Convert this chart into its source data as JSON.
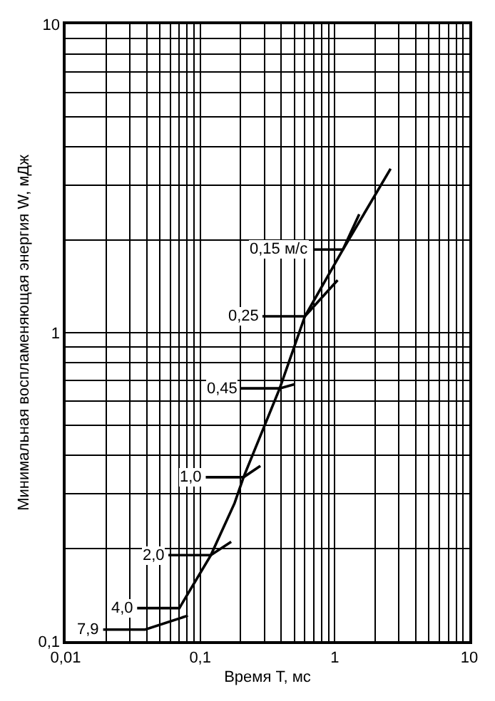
{
  "chart_data": {
    "type": "line",
    "xlabel": "Время T, мс",
    "ylabel": "Минимальная воспламеняющая энергия W, мДж",
    "log": "xy",
    "grid": true,
    "marker": "none",
    "line_style": "solid",
    "legend": false,
    "xlim": [
      0.01,
      10
    ],
    "ylim": [
      0.1,
      10
    ],
    "xticks": [
      {
        "value": 0.01,
        "label": "0,01"
      },
      {
        "value": 0.1,
        "label": "0,1"
      },
      1,
      10
    ],
    "yticks": [
      {
        "value": 0.1,
        "label": "0,1"
      },
      1,
      10
    ],
    "series": [
      {
        "name": "0,15 м/с",
        "color": "#000000",
        "x": [
          0.69,
          1.15,
          1.52
        ],
        "values": [
          1.86,
          1.86,
          2.42
        ]
      },
      {
        "name": "0,25",
        "color": "#000000",
        "x": [
          0.29,
          0.6,
          1.05
        ],
        "values": [
          1.13,
          1.13,
          1.48
        ]
      },
      {
        "name": "0,45",
        "color": "#000000",
        "x": [
          0.2,
          0.39,
          0.5
        ],
        "values": [
          0.66,
          0.66,
          0.68
        ]
      },
      {
        "name": "1,0",
        "color": "#000000",
        "x": [
          0.11,
          0.21,
          0.28
        ],
        "values": [
          0.34,
          0.34,
          0.37
        ]
      },
      {
        "name": "2,0",
        "color": "#000000",
        "x": [
          0.058,
          0.12,
          0.17
        ],
        "values": [
          0.19,
          0.19,
          0.21
        ]
      },
      {
        "name": "4,0",
        "color": "#000000",
        "x": [
          0.034,
          0.07,
          0.12,
          0.18,
          0.21,
          0.39,
          0.6,
          1.15,
          2.6
        ],
        "values": [
          0.128,
          0.128,
          0.19,
          0.28,
          0.34,
          0.66,
          1.13,
          1.86,
          3.4
        ]
      },
      {
        "name": "7,9",
        "color": "#000000",
        "x": [
          0.019,
          0.039,
          0.081
        ],
        "values": [
          0.109,
          0.109,
          0.121
        ]
      }
    ]
  }
}
